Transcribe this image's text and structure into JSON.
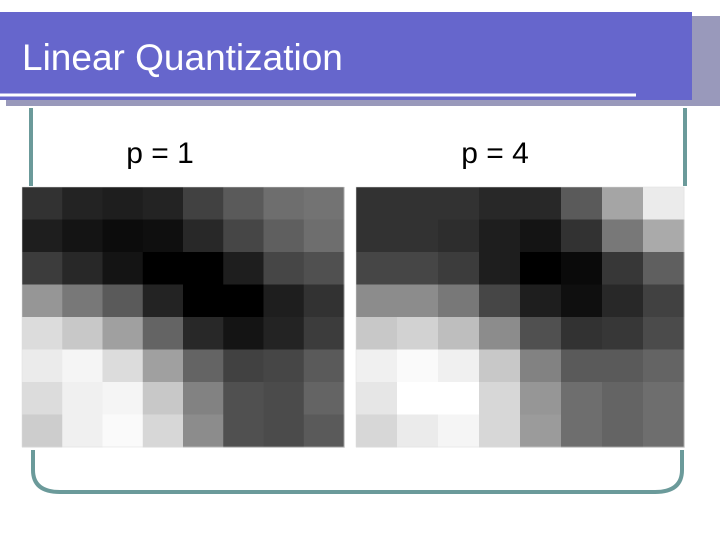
{
  "slide": {
    "title": "Linear Quantization",
    "panels": [
      {
        "label": "p = 1",
        "pixels": [
          [
            50,
            35,
            30,
            35,
            65,
            90,
            110,
            115
          ],
          [
            30,
            20,
            12,
            15,
            40,
            70,
            95,
            110
          ],
          [
            60,
            40,
            20,
            0,
            0,
            30,
            70,
            80
          ],
          [
            150,
            120,
            90,
            35,
            0,
            0,
            30,
            50
          ],
          [
            220,
            200,
            160,
            100,
            40,
            20,
            35,
            60
          ],
          [
            235,
            245,
            220,
            160,
            100,
            65,
            70,
            90
          ],
          [
            220,
            240,
            245,
            200,
            130,
            80,
            75,
            100
          ],
          [
            205,
            240,
            250,
            215,
            140,
            80,
            75,
            90
          ]
        ]
      },
      {
        "label": "p = 4",
        "pixels": [
          [
            50,
            50,
            50,
            40,
            40,
            90,
            165,
            235
          ],
          [
            50,
            50,
            45,
            30,
            20,
            50,
            120,
            170
          ],
          [
            70,
            70,
            60,
            30,
            0,
            10,
            55,
            95
          ],
          [
            140,
            140,
            120,
            70,
            30,
            15,
            40,
            65
          ],
          [
            200,
            210,
            190,
            140,
            80,
            50,
            55,
            75
          ],
          [
            240,
            250,
            240,
            200,
            130,
            90,
            90,
            100
          ],
          [
            230,
            255,
            255,
            215,
            150,
            110,
            100,
            110
          ],
          [
            215,
            235,
            245,
            215,
            155,
            110,
            100,
            110
          ]
        ]
      }
    ]
  }
}
